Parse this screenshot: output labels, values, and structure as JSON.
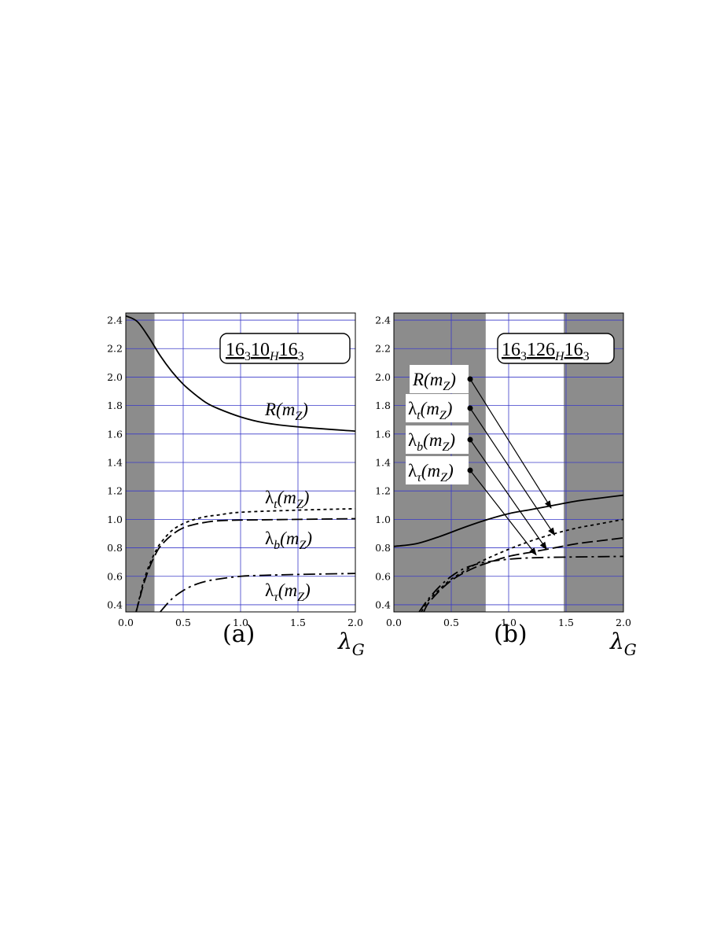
{
  "chart_data": [
    {
      "type": "line",
      "panel_label": "(a)",
      "title": "16_3 10_H 16_3",
      "xlabel": "λ_G",
      "ylabel": "",
      "xlim": [
        0,
        2.0
      ],
      "ylim": [
        0.35,
        2.45
      ],
      "x_ticks": [
        "0.0",
        "0.5",
        "1.0",
        "1.5",
        "2.0"
      ],
      "y_ticks": [
        "0.4",
        "0.6",
        "0.8",
        "1.0",
        "1.2",
        "1.4",
        "1.6",
        "1.8",
        "2.0",
        "2.2",
        "2.4"
      ],
      "grid": true,
      "shaded_x_ranges": [
        [
          0,
          0.25
        ]
      ],
      "series": [
        {
          "name": "R(m_Z)",
          "line_style": "solid",
          "x": [
            0.0,
            0.1,
            0.2,
            0.3,
            0.4,
            0.5,
            0.6,
            0.7,
            0.8,
            1.0,
            1.2,
            1.5,
            2.0
          ],
          "y": [
            2.43,
            2.39,
            2.28,
            2.15,
            2.04,
            1.95,
            1.88,
            1.82,
            1.78,
            1.72,
            1.68,
            1.65,
            1.62
          ]
        },
        {
          "name": "λ_t(m_Z)",
          "line_style": "dotted",
          "x": [
            0.09,
            0.12,
            0.15,
            0.2,
            0.25,
            0.3,
            0.4,
            0.5,
            0.6,
            0.7,
            0.8,
            1.0,
            1.5,
            2.0
          ],
          "y": [
            0.35,
            0.45,
            0.55,
            0.67,
            0.76,
            0.83,
            0.92,
            0.97,
            1.0,
            1.02,
            1.03,
            1.05,
            1.065,
            1.075
          ]
        },
        {
          "name": "λ_b(m_Z)",
          "line_style": "dashed",
          "x": [
            0.09,
            0.12,
            0.15,
            0.2,
            0.25,
            0.3,
            0.4,
            0.5,
            0.6,
            0.7,
            0.8,
            1.0,
            1.5,
            2.0
          ],
          "y": [
            0.35,
            0.44,
            0.53,
            0.65,
            0.74,
            0.81,
            0.89,
            0.94,
            0.965,
            0.98,
            0.99,
            0.995,
            1.0,
            1.005
          ]
        },
        {
          "name": "λ_τ(m_Z)",
          "line_style": "dash-dot",
          "x": [
            0.3,
            0.4,
            0.5,
            0.6,
            0.7,
            0.8,
            1.0,
            1.2,
            1.5,
            2.0
          ],
          "y": [
            0.35,
            0.44,
            0.5,
            0.54,
            0.565,
            0.58,
            0.6,
            0.607,
            0.613,
            0.62
          ]
        }
      ]
    },
    {
      "type": "line",
      "panel_label": "(b)",
      "title": "16_3 126_H 16_3",
      "xlabel": "λ_G",
      "ylabel": "",
      "xlim": [
        0,
        2.0
      ],
      "ylim": [
        0.35,
        2.45
      ],
      "x_ticks": [
        "0.0",
        "0.5",
        "1.0",
        "1.5",
        "2.0"
      ],
      "y_ticks": [
        "0.4",
        "0.6",
        "0.8",
        "1.0",
        "1.2",
        "1.4",
        "1.6",
        "1.8",
        "2.0",
        "2.2",
        "2.4"
      ],
      "grid": true,
      "shaded_x_ranges": [
        [
          0,
          0.8
        ],
        [
          1.48,
          2.0
        ]
      ],
      "series": [
        {
          "name": "R(m_Z)",
          "line_style": "solid",
          "x": [
            0.0,
            0.2,
            0.4,
            0.6,
            0.8,
            1.0,
            1.2,
            1.4,
            1.6,
            1.8,
            2.0
          ],
          "y": [
            0.81,
            0.83,
            0.88,
            0.94,
            0.995,
            1.04,
            1.07,
            1.1,
            1.13,
            1.15,
            1.17
          ]
        },
        {
          "name": "λ_t(m_Z)",
          "line_style": "dotted",
          "x": [
            0.24,
            0.3,
            0.4,
            0.5,
            0.6,
            0.7,
            0.8,
            1.0,
            1.2,
            1.4,
            1.6,
            1.8,
            2.0
          ],
          "y": [
            0.35,
            0.43,
            0.51,
            0.58,
            0.63,
            0.68,
            0.72,
            0.79,
            0.85,
            0.9,
            0.94,
            0.97,
            1.0
          ]
        },
        {
          "name": "λ_b(m_Z)",
          "line_style": "dashed",
          "x": [
            0.26,
            0.3,
            0.4,
            0.5,
            0.6,
            0.7,
            0.8,
            1.0,
            1.2,
            1.4,
            1.6,
            1.8,
            2.0
          ],
          "y": [
            0.35,
            0.41,
            0.5,
            0.57,
            0.62,
            0.66,
            0.69,
            0.74,
            0.77,
            0.8,
            0.83,
            0.85,
            0.87
          ]
        },
        {
          "name": "λ_τ(m_Z)",
          "line_style": "dash-dot",
          "x": [
            0.22,
            0.3,
            0.4,
            0.5,
            0.6,
            0.7,
            0.8,
            1.0,
            1.2,
            1.5,
            2.0
          ],
          "y": [
            0.35,
            0.44,
            0.53,
            0.6,
            0.65,
            0.68,
            0.7,
            0.72,
            0.73,
            0.735,
            0.74
          ]
        }
      ],
      "annotations": [
        {
          "label": "R(m_Z)",
          "points_to": {
            "x": 1.37,
            "y": 1.08
          }
        },
        {
          "label": "λ_t(m_Z)",
          "points_to": {
            "x": 1.4,
            "y": 0.89
          }
        },
        {
          "label": "λ_b(m_Z)",
          "points_to": {
            "x": 1.33,
            "y": 0.79
          }
        },
        {
          "label": "λ_τ(m_Z)",
          "points_to": {
            "x": 1.24,
            "y": 0.75
          }
        }
      ]
    }
  ],
  "colors": {
    "shade": "#8c8c8c",
    "grid": "#3a3ac8",
    "line": "#000000"
  }
}
